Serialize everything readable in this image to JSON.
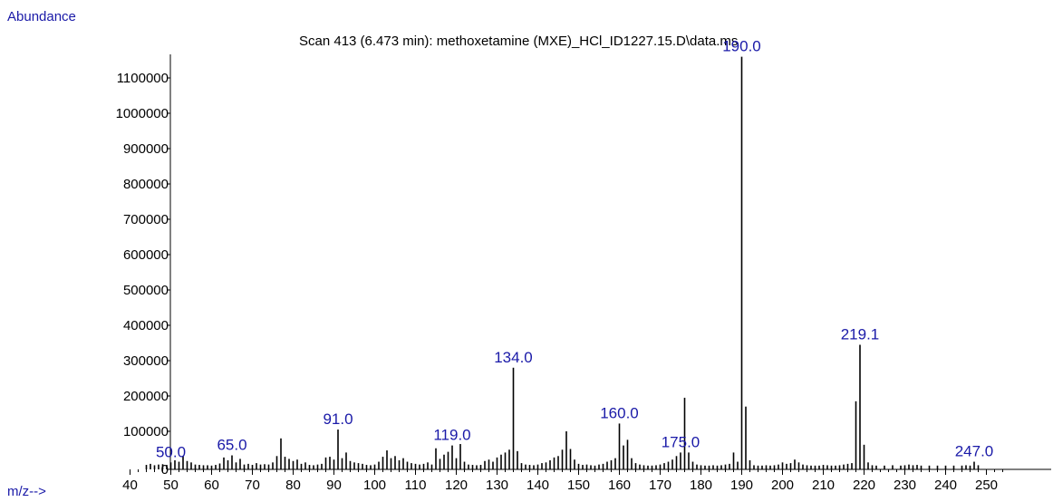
{
  "chart_data": {
    "type": "bar",
    "title": "Scan 413 (6.473 min): methoxetamine (MXE)_HCl_ID1227.15.D\\data.ms",
    "ylabel": "Abundance",
    "xlabel": "m/z-->",
    "xlim": [
      40,
      255
    ],
    "ylim": [
      0,
      1180000
    ],
    "xticks": [
      40,
      50,
      60,
      70,
      80,
      90,
      100,
      110,
      120,
      130,
      140,
      150,
      160,
      170,
      180,
      190,
      200,
      210,
      220,
      230,
      240,
      250
    ],
    "yticks": [
      0,
      100000,
      200000,
      300000,
      400000,
      500000,
      600000,
      700000,
      800000,
      900000,
      1000000,
      1100000
    ],
    "colors": {
      "axis": "#000000",
      "label": "#1a1aa8",
      "bar": "#000000"
    },
    "peaks": [
      {
        "mz": 44,
        "abundance": 5000
      },
      {
        "mz": 45,
        "abundance": 8000
      },
      {
        "mz": 46,
        "abundance": 4000
      },
      {
        "mz": 47,
        "abundance": 6000
      },
      {
        "mz": 48,
        "abundance": 7000
      },
      {
        "mz": 49,
        "abundance": 5000
      },
      {
        "mz": 50,
        "abundance": 12000
      },
      {
        "mz": 51,
        "abundance": 18000
      },
      {
        "mz": 52,
        "abundance": 14000
      },
      {
        "mz": 53,
        "abundance": 30000
      },
      {
        "mz": 54,
        "abundance": 16000
      },
      {
        "mz": 55,
        "abundance": 12000
      },
      {
        "mz": 56,
        "abundance": 6000
      },
      {
        "mz": 57,
        "abundance": 5000
      },
      {
        "mz": 58,
        "abundance": 4000
      },
      {
        "mz": 59,
        "abundance": 4000
      },
      {
        "mz": 60,
        "abundance": 3000
      },
      {
        "mz": 61,
        "abundance": 5000
      },
      {
        "mz": 62,
        "abundance": 9000
      },
      {
        "mz": 63,
        "abundance": 26000
      },
      {
        "mz": 64,
        "abundance": 18000
      },
      {
        "mz": 65,
        "abundance": 32000
      },
      {
        "mz": 66,
        "abundance": 12000
      },
      {
        "mz": 67,
        "abundance": 22000
      },
      {
        "mz": 68,
        "abundance": 6000
      },
      {
        "mz": 69,
        "abundance": 8000
      },
      {
        "mz": 70,
        "abundance": 5000
      },
      {
        "mz": 71,
        "abundance": 10000
      },
      {
        "mz": 72,
        "abundance": 6000
      },
      {
        "mz": 73,
        "abundance": 7000
      },
      {
        "mz": 74,
        "abundance": 6000
      },
      {
        "mz": 75,
        "abundance": 12000
      },
      {
        "mz": 76,
        "abundance": 30000
      },
      {
        "mz": 77,
        "abundance": 80000
      },
      {
        "mz": 78,
        "abundance": 28000
      },
      {
        "mz": 79,
        "abundance": 22000
      },
      {
        "mz": 80,
        "abundance": 16000
      },
      {
        "mz": 81,
        "abundance": 20000
      },
      {
        "mz": 82,
        "abundance": 8000
      },
      {
        "mz": 83,
        "abundance": 12000
      },
      {
        "mz": 84,
        "abundance": 5000
      },
      {
        "mz": 85,
        "abundance": 4000
      },
      {
        "mz": 86,
        "abundance": 6000
      },
      {
        "mz": 87,
        "abundance": 8000
      },
      {
        "mz": 88,
        "abundance": 26000
      },
      {
        "mz": 89,
        "abundance": 28000
      },
      {
        "mz": 90,
        "abundance": 20000
      },
      {
        "mz": 91,
        "abundance": 105000
      },
      {
        "mz": 92,
        "abundance": 24000
      },
      {
        "mz": 93,
        "abundance": 40000
      },
      {
        "mz": 94,
        "abundance": 16000
      },
      {
        "mz": 95,
        "abundance": 12000
      },
      {
        "mz": 96,
        "abundance": 10000
      },
      {
        "mz": 97,
        "abundance": 8000
      },
      {
        "mz": 98,
        "abundance": 5000
      },
      {
        "mz": 99,
        "abundance": 4000
      },
      {
        "mz": 100,
        "abundance": 6000
      },
      {
        "mz": 101,
        "abundance": 14000
      },
      {
        "mz": 102,
        "abundance": 28000
      },
      {
        "mz": 103,
        "abundance": 46000
      },
      {
        "mz": 104,
        "abundance": 24000
      },
      {
        "mz": 105,
        "abundance": 30000
      },
      {
        "mz": 106,
        "abundance": 18000
      },
      {
        "mz": 107,
        "abundance": 24000
      },
      {
        "mz": 108,
        "abundance": 14000
      },
      {
        "mz": 109,
        "abundance": 10000
      },
      {
        "mz": 110,
        "abundance": 8000
      },
      {
        "mz": 111,
        "abundance": 6000
      },
      {
        "mz": 112,
        "abundance": 8000
      },
      {
        "mz": 113,
        "abundance": 12000
      },
      {
        "mz": 114,
        "abundance": 6000
      },
      {
        "mz": 115,
        "abundance": 52000
      },
      {
        "mz": 116,
        "abundance": 22000
      },
      {
        "mz": 117,
        "abundance": 34000
      },
      {
        "mz": 118,
        "abundance": 42000
      },
      {
        "mz": 119,
        "abundance": 60000
      },
      {
        "mz": 120,
        "abundance": 24000
      },
      {
        "mz": 121,
        "abundance": 64000
      },
      {
        "mz": 122,
        "abundance": 14000
      },
      {
        "mz": 123,
        "abundance": 6000
      },
      {
        "mz": 124,
        "abundance": 5000
      },
      {
        "mz": 125,
        "abundance": 4000
      },
      {
        "mz": 126,
        "abundance": 5000
      },
      {
        "mz": 127,
        "abundance": 16000
      },
      {
        "mz": 128,
        "abundance": 20000
      },
      {
        "mz": 129,
        "abundance": 14000
      },
      {
        "mz": 130,
        "abundance": 26000
      },
      {
        "mz": 131,
        "abundance": 34000
      },
      {
        "mz": 132,
        "abundance": 40000
      },
      {
        "mz": 133,
        "abundance": 48000
      },
      {
        "mz": 134,
        "abundance": 280000
      },
      {
        "mz": 135,
        "abundance": 44000
      },
      {
        "mz": 136,
        "abundance": 10000
      },
      {
        "mz": 137,
        "abundance": 6000
      },
      {
        "mz": 138,
        "abundance": 5000
      },
      {
        "mz": 139,
        "abundance": 4000
      },
      {
        "mz": 140,
        "abundance": 6000
      },
      {
        "mz": 141,
        "abundance": 10000
      },
      {
        "mz": 142,
        "abundance": 12000
      },
      {
        "mz": 143,
        "abundance": 18000
      },
      {
        "mz": 144,
        "abundance": 26000
      },
      {
        "mz": 145,
        "abundance": 30000
      },
      {
        "mz": 146,
        "abundance": 48000
      },
      {
        "mz": 147,
        "abundance": 100000
      },
      {
        "mz": 148,
        "abundance": 50000
      },
      {
        "mz": 149,
        "abundance": 20000
      },
      {
        "mz": 150,
        "abundance": 8000
      },
      {
        "mz": 151,
        "abundance": 5000
      },
      {
        "mz": 152,
        "abundance": 6000
      },
      {
        "mz": 153,
        "abundance": 4000
      },
      {
        "mz": 154,
        "abundance": 3000
      },
      {
        "mz": 155,
        "abundance": 6000
      },
      {
        "mz": 156,
        "abundance": 8000
      },
      {
        "mz": 157,
        "abundance": 14000
      },
      {
        "mz": 158,
        "abundance": 18000
      },
      {
        "mz": 159,
        "abundance": 24000
      },
      {
        "mz": 160,
        "abundance": 122000
      },
      {
        "mz": 161,
        "abundance": 60000
      },
      {
        "mz": 162,
        "abundance": 76000
      },
      {
        "mz": 163,
        "abundance": 24000
      },
      {
        "mz": 164,
        "abundance": 10000
      },
      {
        "mz": 165,
        "abundance": 6000
      },
      {
        "mz": 166,
        "abundance": 4000
      },
      {
        "mz": 167,
        "abundance": 3000
      },
      {
        "mz": 168,
        "abundance": 3000
      },
      {
        "mz": 169,
        "abundance": 4000
      },
      {
        "mz": 170,
        "abundance": 6000
      },
      {
        "mz": 171,
        "abundance": 10000
      },
      {
        "mz": 172,
        "abundance": 14000
      },
      {
        "mz": 173,
        "abundance": 20000
      },
      {
        "mz": 174,
        "abundance": 30000
      },
      {
        "mz": 175,
        "abundance": 40000
      },
      {
        "mz": 176,
        "abundance": 195000
      },
      {
        "mz": 177,
        "abundance": 40000
      },
      {
        "mz": 178,
        "abundance": 14000
      },
      {
        "mz": 179,
        "abundance": 6000
      },
      {
        "mz": 180,
        "abundance": 4000
      },
      {
        "mz": 181,
        "abundance": 3000
      },
      {
        "mz": 182,
        "abundance": 3000
      },
      {
        "mz": 183,
        "abundance": 4000
      },
      {
        "mz": 184,
        "abundance": 3000
      },
      {
        "mz": 185,
        "abundance": 4000
      },
      {
        "mz": 186,
        "abundance": 6000
      },
      {
        "mz": 187,
        "abundance": 8000
      },
      {
        "mz": 188,
        "abundance": 40000
      },
      {
        "mz": 189,
        "abundance": 14000
      },
      {
        "mz": 190,
        "abundance": 1160000
      },
      {
        "mz": 191,
        "abundance": 170000
      },
      {
        "mz": 192,
        "abundance": 18000
      },
      {
        "mz": 193,
        "abundance": 4000
      },
      {
        "mz": 194,
        "abundance": 3000
      },
      {
        "mz": 195,
        "abundance": 3000
      },
      {
        "mz": 196,
        "abundance": 4000
      },
      {
        "mz": 197,
        "abundance": 3000
      },
      {
        "mz": 198,
        "abundance": 4000
      },
      {
        "mz": 199,
        "abundance": 6000
      },
      {
        "mz": 200,
        "abundance": 12000
      },
      {
        "mz": 201,
        "abundance": 8000
      },
      {
        "mz": 202,
        "abundance": 10000
      },
      {
        "mz": 203,
        "abundance": 20000
      },
      {
        "mz": 204,
        "abundance": 12000
      },
      {
        "mz": 205,
        "abundance": 6000
      },
      {
        "mz": 206,
        "abundance": 4000
      },
      {
        "mz": 207,
        "abundance": 3000
      },
      {
        "mz": 208,
        "abundance": 3000
      },
      {
        "mz": 209,
        "abundance": 3000
      },
      {
        "mz": 210,
        "abundance": 5000
      },
      {
        "mz": 211,
        "abundance": 4000
      },
      {
        "mz": 212,
        "abundance": 3000
      },
      {
        "mz": 213,
        "abundance": 3000
      },
      {
        "mz": 214,
        "abundance": 4000
      },
      {
        "mz": 215,
        "abundance": 6000
      },
      {
        "mz": 216,
        "abundance": 8000
      },
      {
        "mz": 217,
        "abundance": 10000
      },
      {
        "mz": 218,
        "abundance": 185000
      },
      {
        "mz": 219,
        "abundance": 345000
      },
      {
        "mz": 220,
        "abundance": 62000
      },
      {
        "mz": 221,
        "abundance": 12000
      },
      {
        "mz": 222,
        "abundance": 4000
      },
      {
        "mz": 223,
        "abundance": 3000
      },
      {
        "mz": 225,
        "abundance": 3000
      },
      {
        "mz": 227,
        "abundance": 4000
      },
      {
        "mz": 229,
        "abundance": 3000
      },
      {
        "mz": 230,
        "abundance": 4000
      },
      {
        "mz": 231,
        "abundance": 6000
      },
      {
        "mz": 232,
        "abundance": 4000
      },
      {
        "mz": 233,
        "abundance": 5000
      },
      {
        "mz": 234,
        "abundance": 3000
      },
      {
        "mz": 236,
        "abundance": 3000
      },
      {
        "mz": 238,
        "abundance": 3000
      },
      {
        "mz": 240,
        "abundance": 3000
      },
      {
        "mz": 242,
        "abundance": 3000
      },
      {
        "mz": 244,
        "abundance": 3000
      },
      {
        "mz": 245,
        "abundance": 4000
      },
      {
        "mz": 246,
        "abundance": 3000
      },
      {
        "mz": 247,
        "abundance": 14000
      },
      {
        "mz": 248,
        "abundance": 4000
      }
    ],
    "peak_labels": [
      {
        "mz": 50,
        "text": "50.0",
        "abundance": 12000
      },
      {
        "mz": 65,
        "text": "65.0",
        "abundance": 32000
      },
      {
        "mz": 91,
        "text": "91.0",
        "abundance": 105000
      },
      {
        "mz": 119,
        "text": "119.0",
        "abundance": 60000
      },
      {
        "mz": 134,
        "text": "134.0",
        "abundance": 280000
      },
      {
        "mz": 160,
        "text": "160.0",
        "abundance": 122000
      },
      {
        "mz": 175,
        "text": "175.0",
        "abundance": 40000
      },
      {
        "mz": 190,
        "text": "190.0",
        "abundance": 1160000
      },
      {
        "mz": 219,
        "text": "219.1",
        "abundance": 345000
      },
      {
        "mz": 247,
        "text": "247.0",
        "abundance": 14000
      }
    ]
  }
}
